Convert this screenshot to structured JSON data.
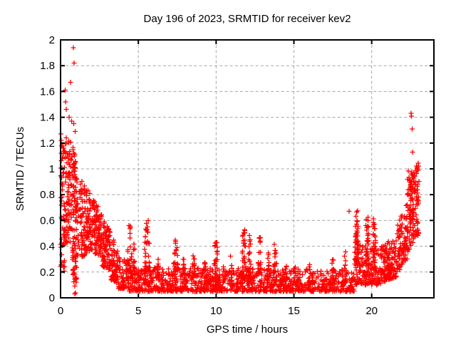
{
  "background_color": "#ffffff",
  "chart_data": {
    "type": "scatter",
    "title": "Day 196 of 2023, SRMTID for receiver kev2",
    "xlabel": "GPS time / hours",
    "ylabel": "SRMTID / TECUs",
    "xlim": [
      0,
      24
    ],
    "ylim": [
      0,
      2
    ],
    "xticks": {
      "values": [
        0,
        5,
        10,
        15,
        20
      ],
      "labels": [
        "0",
        "5",
        "10",
        "15",
        "20"
      ]
    },
    "yticks": {
      "values": [
        0,
        0.2,
        0.4,
        0.6,
        0.8,
        1.0,
        1.2,
        1.4,
        1.6,
        1.8,
        2.0
      ],
      "labels": [
        "0",
        "0.2",
        "0.4",
        "0.6",
        "0.8",
        "1",
        "1.2",
        "1.4",
        "1.6",
        "1.8",
        "2"
      ]
    },
    "grid": true,
    "grid_style": "dashed",
    "grid_color": "#a6a6a6",
    "border_color": "#000000",
    "marker": "plus",
    "marker_color": "#ff0000",
    "marker_size": 7,
    "approx_total_points": 2600,
    "point_generation": {
      "seed": 42,
      "segments_format": [
        "t0",
        "t1",
        "n",
        "vmin0",
        "vmin1",
        "vmax0",
        "vmax1",
        "bias"
      ],
      "segments": [
        [
          0.0,
          0.3,
          10,
          0.14,
          0.14,
          0.36,
          0.36,
          1.0
        ],
        [
          0.0,
          0.25,
          45,
          0.38,
          0.4,
          1.28,
          1.24,
          1.1
        ],
        [
          0.25,
          0.75,
          90,
          0.42,
          0.4,
          1.26,
          1.2,
          1.15
        ],
        [
          0.75,
          1.05,
          80,
          0.28,
          0.3,
          1.18,
          1.12,
          1.2
        ],
        [
          0.8,
          1.05,
          25,
          0.02,
          0.02,
          0.3,
          0.3,
          1.0
        ],
        [
          1.05,
          1.55,
          70,
          0.3,
          0.33,
          1.0,
          0.88,
          1.35
        ],
        [
          1.55,
          2.1,
          75,
          0.34,
          0.36,
          0.86,
          0.8,
          1.35
        ],
        [
          2.1,
          2.65,
          95,
          0.34,
          0.32,
          0.78,
          0.66,
          1.2
        ],
        [
          2.65,
          3.2,
          85,
          0.25,
          0.2,
          0.62,
          0.52,
          1.3
        ],
        [
          3.2,
          3.7,
          65,
          0.14,
          0.11,
          0.5,
          0.38,
          1.5
        ],
        [
          3.7,
          4.4,
          75,
          0.07,
          0.07,
          0.32,
          0.28,
          1.6
        ],
        [
          4.4,
          18.9,
          1080,
          0.05,
          0.05,
          0.24,
          0.22,
          1.8
        ],
        [
          18.9,
          20.6,
          150,
          0.1,
          0.1,
          0.42,
          0.38,
          1.6
        ],
        [
          20.6,
          21.6,
          110,
          0.12,
          0.16,
          0.4,
          0.48,
          1.5
        ],
        [
          21.6,
          22.3,
          95,
          0.18,
          0.3,
          0.56,
          0.75,
          1.3
        ],
        [
          22.3,
          23.05,
          115,
          0.35,
          0.5,
          1.0,
          1.05,
          1.1
        ]
      ],
      "spikes_format": [
        "t_center",
        "half_width",
        "v_base",
        "v_top",
        "n"
      ],
      "spikes": [
        [
          4.45,
          0.18,
          0.2,
          0.57,
          28
        ],
        [
          4.75,
          0.1,
          0.18,
          0.45,
          12
        ],
        [
          5.55,
          0.22,
          0.2,
          0.61,
          40
        ],
        [
          6.25,
          0.1,
          0.15,
          0.35,
          12
        ],
        [
          7.4,
          0.18,
          0.15,
          0.45,
          26
        ],
        [
          7.9,
          0.1,
          0.12,
          0.3,
          10
        ],
        [
          8.55,
          0.12,
          0.12,
          0.34,
          12
        ],
        [
          9.3,
          0.1,
          0.12,
          0.3,
          10
        ],
        [
          10.0,
          0.22,
          0.12,
          0.43,
          28
        ],
        [
          10.5,
          0.08,
          0.12,
          0.3,
          8
        ],
        [
          10.95,
          0.1,
          0.12,
          0.33,
          10
        ],
        [
          11.8,
          0.18,
          0.15,
          0.57,
          42
        ],
        [
          12.15,
          0.12,
          0.15,
          0.5,
          22
        ],
        [
          12.8,
          0.12,
          0.12,
          0.48,
          18
        ],
        [
          13.35,
          0.1,
          0.12,
          0.35,
          12
        ],
        [
          13.8,
          0.15,
          0.12,
          0.42,
          20
        ],
        [
          14.5,
          0.1,
          0.1,
          0.28,
          8
        ],
        [
          15.05,
          0.1,
          0.1,
          0.3,
          10
        ],
        [
          16.0,
          0.1,
          0.1,
          0.26,
          8
        ],
        [
          17.5,
          0.12,
          0.1,
          0.33,
          12
        ],
        [
          18.3,
          0.12,
          0.12,
          0.36,
          14
        ],
        [
          19.05,
          0.15,
          0.25,
          0.7,
          45
        ],
        [
          19.7,
          0.15,
          0.25,
          0.67,
          38
        ],
        [
          20.15,
          0.15,
          0.2,
          0.63,
          30
        ],
        [
          21.05,
          0.25,
          0.15,
          0.45,
          25
        ],
        [
          22.55,
          0.15,
          0.6,
          1.05,
          30
        ]
      ],
      "outliers": [
        [
          0.82,
          1.94
        ],
        [
          0.87,
          1.82
        ],
        [
          0.64,
          1.67
        ],
        [
          0.3,
          1.61
        ],
        [
          0.33,
          1.52
        ],
        [
          0.36,
          1.46
        ],
        [
          0.55,
          1.4
        ],
        [
          0.7,
          1.37
        ],
        [
          0.85,
          1.35
        ],
        [
          0.95,
          1.29
        ],
        [
          0.05,
          1.22
        ],
        [
          0.08,
          1.18
        ],
        [
          18.55,
          0.67
        ],
        [
          22.54,
          1.43
        ],
        [
          22.56,
          1.41
        ],
        [
          22.6,
          1.31
        ],
        [
          22.62,
          1.13
        ]
      ]
    }
  }
}
